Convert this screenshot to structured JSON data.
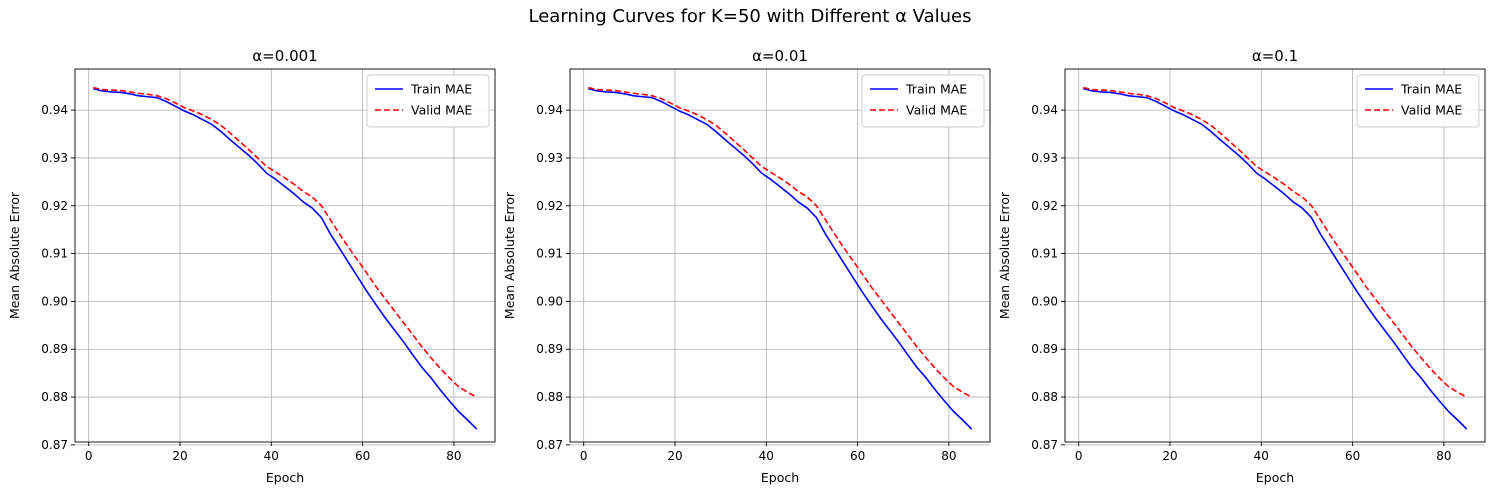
{
  "figure": {
    "title": "Learning Curves for K=50 with Different α Values"
  },
  "chart_data": [
    {
      "type": "line",
      "title": "α=0.001",
      "xlabel": "Epoch",
      "ylabel": "Mean Absolute Error",
      "xlim": [
        -3,
        89
      ],
      "ylim": [
        0.8706,
        0.9486
      ],
      "xticks": [
        0,
        20,
        40,
        60,
        80
      ],
      "yticks": [
        0.87,
        0.88,
        0.89,
        0.9,
        0.91,
        0.92,
        0.93,
        0.94
      ],
      "ytick_labels": [
        "0.87",
        "0.88",
        "0.89",
        "0.90",
        "0.91",
        "0.92",
        "0.93",
        "0.94"
      ],
      "grid": true,
      "legend_position": "top-right",
      "series": [
        {
          "name": "Train MAE",
          "color": "#0000ff",
          "style": "solid",
          "x": [
            1,
            3,
            5,
            7,
            9,
            11,
            13,
            15,
            17,
            19,
            21,
            23,
            25,
            27,
            29,
            31,
            33,
            35,
            37,
            39,
            41,
            43,
            45,
            47,
            49,
            51,
            53,
            55,
            57,
            59,
            61,
            63,
            65,
            67,
            69,
            71,
            73,
            75,
            77,
            79,
            81,
            83,
            85
          ],
          "y": [
            0.9445,
            0.944,
            0.9438,
            0.9437,
            0.9434,
            0.943,
            0.9428,
            0.9426,
            0.9418,
            0.9408,
            0.9398,
            0.939,
            0.938,
            0.937,
            0.9355,
            0.9338,
            0.9322,
            0.9306,
            0.9288,
            0.9268,
            0.9255,
            0.924,
            0.9225,
            0.9208,
            0.9195,
            0.9175,
            0.914,
            0.911,
            0.908,
            0.905,
            0.902,
            0.8992,
            0.8965,
            0.894,
            0.8915,
            0.8888,
            0.8862,
            0.884,
            0.8815,
            0.8792,
            0.877,
            0.8752,
            0.8733
          ]
        },
        {
          "name": "Valid MAE",
          "color": "#ff0000",
          "style": "dashed",
          "x": [
            1,
            3,
            5,
            7,
            9,
            11,
            13,
            15,
            17,
            19,
            21,
            23,
            25,
            27,
            29,
            31,
            33,
            35,
            37,
            39,
            41,
            43,
            45,
            47,
            49,
            51,
            53,
            55,
            57,
            59,
            61,
            63,
            65,
            67,
            69,
            71,
            73,
            75,
            77,
            79,
            81,
            83,
            85
          ],
          "y": [
            0.9447,
            0.9443,
            0.9442,
            0.9441,
            0.9438,
            0.9435,
            0.9433,
            0.943,
            0.9424,
            0.9415,
            0.9405,
            0.9398,
            0.939,
            0.938,
            0.9368,
            0.9352,
            0.9335,
            0.9318,
            0.93,
            0.9282,
            0.927,
            0.9258,
            0.9245,
            0.923,
            0.9218,
            0.92,
            0.917,
            0.914,
            0.9112,
            0.9085,
            0.9058,
            0.903,
            0.9005,
            0.898,
            0.8955,
            0.893,
            0.8905,
            0.8882,
            0.886,
            0.884,
            0.8822,
            0.881,
            0.88
          ]
        }
      ]
    },
    {
      "type": "line",
      "title": "α=0.01",
      "xlabel": "Epoch",
      "ylabel": "Mean Absolute Error",
      "xlim": [
        -3,
        89
      ],
      "ylim": [
        0.8706,
        0.9486
      ],
      "xticks": [
        0,
        20,
        40,
        60,
        80
      ],
      "yticks": [
        0.87,
        0.88,
        0.89,
        0.9,
        0.91,
        0.92,
        0.93,
        0.94
      ],
      "ytick_labels": [
        "0.87",
        "0.88",
        "0.89",
        "0.90",
        "0.91",
        "0.92",
        "0.93",
        "0.94"
      ],
      "grid": true,
      "legend_position": "top-right",
      "series": [
        {
          "name": "Train MAE",
          "color": "#0000ff",
          "style": "solid",
          "x": [
            1,
            3,
            5,
            7,
            9,
            11,
            13,
            15,
            17,
            19,
            21,
            23,
            25,
            27,
            29,
            31,
            33,
            35,
            37,
            39,
            41,
            43,
            45,
            47,
            49,
            51,
            53,
            55,
            57,
            59,
            61,
            63,
            65,
            67,
            69,
            71,
            73,
            75,
            77,
            79,
            81,
            83,
            85
          ],
          "y": [
            0.9445,
            0.944,
            0.9438,
            0.9437,
            0.9434,
            0.943,
            0.9428,
            0.9426,
            0.9418,
            0.9408,
            0.9398,
            0.939,
            0.938,
            0.937,
            0.9355,
            0.9338,
            0.9322,
            0.9306,
            0.9288,
            0.9268,
            0.9255,
            0.924,
            0.9225,
            0.9208,
            0.9195,
            0.9175,
            0.914,
            0.911,
            0.908,
            0.905,
            0.902,
            0.8992,
            0.8965,
            0.894,
            0.8915,
            0.8888,
            0.8862,
            0.884,
            0.8815,
            0.8792,
            0.877,
            0.8752,
            0.8733
          ]
        },
        {
          "name": "Valid MAE",
          "color": "#ff0000",
          "style": "dashed",
          "x": [
            1,
            3,
            5,
            7,
            9,
            11,
            13,
            15,
            17,
            19,
            21,
            23,
            25,
            27,
            29,
            31,
            33,
            35,
            37,
            39,
            41,
            43,
            45,
            47,
            49,
            51,
            53,
            55,
            57,
            59,
            61,
            63,
            65,
            67,
            69,
            71,
            73,
            75,
            77,
            79,
            81,
            83,
            85
          ],
          "y": [
            0.9447,
            0.9443,
            0.9442,
            0.9441,
            0.9438,
            0.9435,
            0.9433,
            0.943,
            0.9424,
            0.9415,
            0.9405,
            0.9398,
            0.939,
            0.938,
            0.9368,
            0.9352,
            0.9335,
            0.9318,
            0.93,
            0.9282,
            0.927,
            0.9258,
            0.9245,
            0.923,
            0.9218,
            0.92,
            0.917,
            0.914,
            0.9112,
            0.9085,
            0.9058,
            0.903,
            0.9005,
            0.898,
            0.8955,
            0.893,
            0.8905,
            0.8882,
            0.886,
            0.884,
            0.8822,
            0.881,
            0.88
          ]
        }
      ]
    },
    {
      "type": "line",
      "title": "α=0.1",
      "xlabel": "Epoch",
      "ylabel": "Mean Absolute Error",
      "xlim": [
        -3,
        89
      ],
      "ylim": [
        0.8706,
        0.9486
      ],
      "xticks": [
        0,
        20,
        40,
        60,
        80
      ],
      "yticks": [
        0.87,
        0.88,
        0.89,
        0.9,
        0.91,
        0.92,
        0.93,
        0.94
      ],
      "ytick_labels": [
        "0.87",
        "0.88",
        "0.89",
        "0.90",
        "0.91",
        "0.92",
        "0.93",
        "0.94"
      ],
      "grid": true,
      "legend_position": "top-right",
      "series": [
        {
          "name": "Train MAE",
          "color": "#0000ff",
          "style": "solid",
          "x": [
            1,
            3,
            5,
            7,
            9,
            11,
            13,
            15,
            17,
            19,
            21,
            23,
            25,
            27,
            29,
            31,
            33,
            35,
            37,
            39,
            41,
            43,
            45,
            47,
            49,
            51,
            53,
            55,
            57,
            59,
            61,
            63,
            65,
            67,
            69,
            71,
            73,
            75,
            77,
            79,
            81,
            83,
            85
          ],
          "y": [
            0.9445,
            0.944,
            0.9438,
            0.9437,
            0.9434,
            0.943,
            0.9428,
            0.9426,
            0.9418,
            0.9408,
            0.9398,
            0.939,
            0.938,
            0.937,
            0.9355,
            0.9338,
            0.9322,
            0.9306,
            0.9288,
            0.9268,
            0.9255,
            0.924,
            0.9225,
            0.9208,
            0.9195,
            0.9175,
            0.914,
            0.911,
            0.908,
            0.905,
            0.902,
            0.8992,
            0.8965,
            0.894,
            0.8915,
            0.8888,
            0.8862,
            0.884,
            0.8815,
            0.8792,
            0.877,
            0.8752,
            0.8733
          ]
        },
        {
          "name": "Valid MAE",
          "color": "#ff0000",
          "style": "dashed",
          "x": [
            1,
            3,
            5,
            7,
            9,
            11,
            13,
            15,
            17,
            19,
            21,
            23,
            25,
            27,
            29,
            31,
            33,
            35,
            37,
            39,
            41,
            43,
            45,
            47,
            49,
            51,
            53,
            55,
            57,
            59,
            61,
            63,
            65,
            67,
            69,
            71,
            73,
            75,
            77,
            79,
            81,
            83,
            85
          ],
          "y": [
            0.9447,
            0.9443,
            0.9442,
            0.9441,
            0.9438,
            0.9435,
            0.9433,
            0.943,
            0.9424,
            0.9415,
            0.9405,
            0.9398,
            0.939,
            0.938,
            0.9368,
            0.9352,
            0.9335,
            0.9318,
            0.93,
            0.9282,
            0.927,
            0.9258,
            0.9245,
            0.923,
            0.9218,
            0.92,
            0.917,
            0.914,
            0.9112,
            0.9085,
            0.9058,
            0.903,
            0.9005,
            0.898,
            0.8955,
            0.893,
            0.8905,
            0.8882,
            0.886,
            0.884,
            0.8822,
            0.881,
            0.88
          ]
        }
      ]
    }
  ]
}
